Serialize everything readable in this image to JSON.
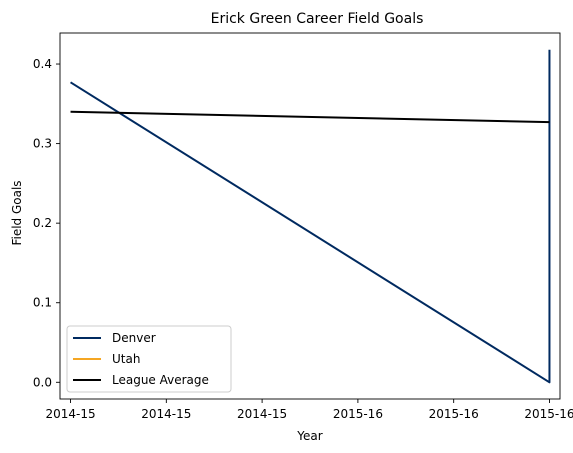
{
  "chart_data": {
    "type": "line",
    "title": "Erick Green Career Field Goals",
    "xlabel": "Year",
    "ylabel": "Field Goals",
    "x_tick_labels": [
      "2014-15",
      "2014-15",
      "2014-15",
      "2015-16",
      "2015-16",
      "2015-16"
    ],
    "xlim": [
      -0.11,
      5.11
    ],
    "ylim": [
      -0.021,
      0.439
    ],
    "y_ticks": [
      0.0,
      0.1,
      0.2,
      0.3,
      0.4
    ],
    "y_tick_labels": [
      "0.0",
      "0.1",
      "0.2",
      "0.3",
      "0.4"
    ],
    "grid": false,
    "legend_position": "lower-left",
    "series": [
      {
        "name": "Denver",
        "color": "#002a60",
        "points": [
          [
            0,
            0.377
          ],
          [
            5,
            0.0
          ],
          [
            5,
            0.418
          ]
        ]
      },
      {
        "name": "Utah",
        "color": "#f5a623",
        "points": []
      },
      {
        "name": "League Average",
        "color": "#000000",
        "points": [
          [
            0,
            0.34
          ],
          [
            5,
            0.327
          ]
        ]
      }
    ]
  }
}
